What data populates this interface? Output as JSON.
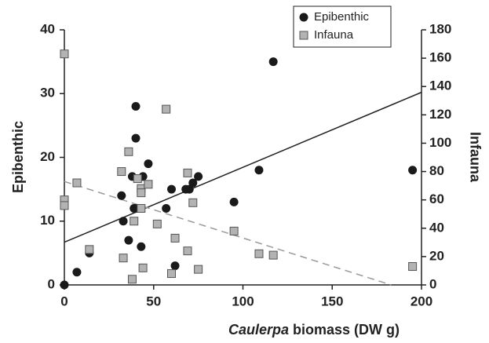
{
  "chart_data": {
    "type": "scatter",
    "xlabel": [
      "Caulerpa",
      "biomass (DW g)"
    ],
    "ylabel": "Epibenthic",
    "y2label": "Infauna",
    "xlim": [
      0,
      200
    ],
    "xticks": [
      0,
      50,
      100,
      150,
      200
    ],
    "ylim": [
      0,
      40
    ],
    "yticks": [
      0,
      10,
      20,
      30,
      40
    ],
    "y2lim": [
      0,
      180
    ],
    "y2ticks": [
      0,
      20,
      40,
      60,
      80,
      100,
      120,
      140,
      160,
      180
    ],
    "legend": "top-right",
    "series": [
      {
        "name": "Epibenthic",
        "marker": "circle",
        "color": "#1a1a1a",
        "axis": "y",
        "x": [
          0,
          7,
          14,
          32,
          33,
          36,
          38,
          39,
          40,
          40,
          40,
          43,
          44,
          47,
          57,
          60,
          62,
          68,
          70,
          72,
          75,
          95,
          109,
          117,
          195
        ],
        "values": [
          0,
          2,
          5,
          14,
          10,
          7,
          17,
          12,
          12,
          28,
          23,
          6,
          17,
          19,
          12,
          15,
          3,
          15,
          15,
          16,
          17,
          13,
          18,
          35,
          18
        ],
        "trend_x": [
          0,
          200
        ],
        "trend_values": [
          6.7,
          30.2
        ],
        "trend_color": "#222222",
        "trend_dash": false
      },
      {
        "name": "Infauna",
        "marker": "square",
        "color": "#b3b3b3",
        "axis": "y2",
        "x": [
          0,
          0,
          0,
          7,
          14,
          32,
          33,
          36,
          38,
          39,
          41,
          43,
          43,
          43,
          44,
          47,
          52,
          57,
          60,
          62,
          69,
          69,
          72,
          75,
          95,
          109,
          117,
          195
        ],
        "values": [
          163,
          60,
          56,
          72,
          25,
          80,
          19,
          94,
          4,
          45,
          75,
          68,
          65,
          54,
          12,
          71,
          43,
          124,
          8,
          33,
          24,
          79,
          58,
          11,
          38,
          22,
          21,
          13
        ],
        "trend_x": [
          0,
          183
        ],
        "trend_values": [
          73,
          0
        ],
        "trend_color": "#999999",
        "trend_dash": true
      }
    ]
  }
}
